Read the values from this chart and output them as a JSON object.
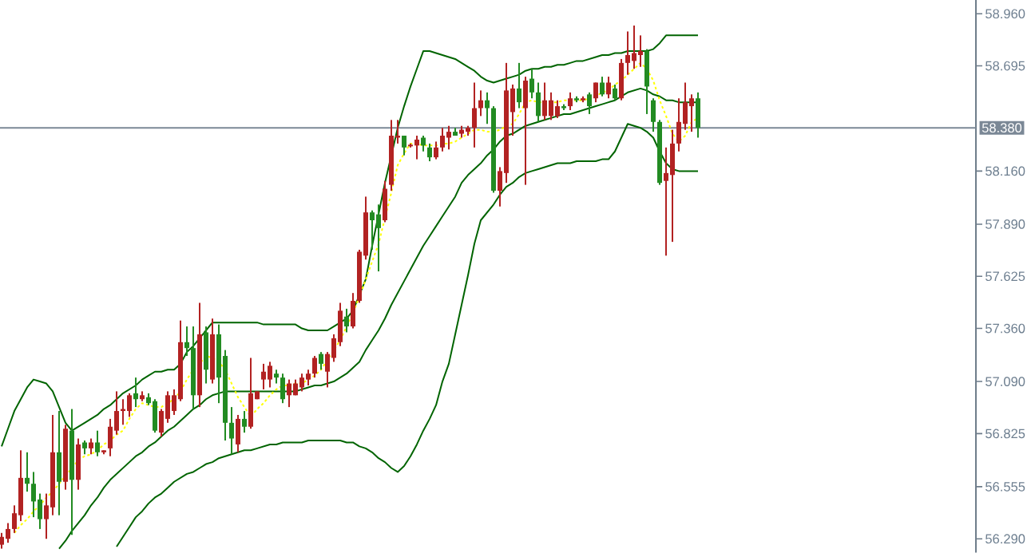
{
  "chart_data": {
    "type": "candlestick",
    "categories": [
      null,
      null,
      null,
      null,
      null,
      null,
      null,
      null,
      null,
      null,
      null,
      null,
      null,
      null,
      null,
      null,
      null,
      null,
      null,
      null,
      null,
      null,
      null,
      null,
      null,
      null,
      null,
      null,
      null,
      null,
      null,
      null,
      null,
      null,
      null,
      null,
      null,
      null,
      null,
      null,
      null,
      null,
      null,
      null,
      null,
      null,
      null,
      null,
      null,
      null,
      null,
      null,
      null,
      null,
      null,
      null,
      null,
      null,
      null,
      null,
      null,
      null,
      null,
      null,
      null,
      null,
      null,
      null,
      null,
      null,
      null,
      null,
      null,
      null,
      null,
      null,
      null,
      null,
      null,
      null,
      null,
      null,
      null,
      null,
      null,
      null,
      null,
      null,
      null,
      null,
      null,
      null,
      null,
      null,
      null,
      null,
      null,
      null,
      null,
      null,
      null,
      null,
      null,
      null,
      null,
      null,
      null,
      null,
      null,
      null
    ],
    "ohlc": [
      [
        56.26,
        56.32,
        56.24,
        56.3
      ],
      [
        56.29,
        56.37,
        56.27,
        56.34
      ],
      [
        56.34,
        56.46,
        56.32,
        56.42
      ],
      [
        56.41,
        56.74,
        56.38,
        56.6
      ],
      [
        56.6,
        56.73,
        56.53,
        56.57
      ],
      [
        56.57,
        56.63,
        56.4,
        56.48
      ],
      [
        56.49,
        56.52,
        56.34,
        56.39
      ],
      [
        56.39,
        56.52,
        56.29,
        56.46
      ],
      [
        56.45,
        56.92,
        56.41,
        56.73
      ],
      [
        56.73,
        56.94,
        56.41,
        56.58
      ],
      [
        56.58,
        56.87,
        56.54,
        56.85
      ],
      [
        56.84,
        56.95,
        56.31,
        56.59
      ],
      [
        56.59,
        56.8,
        56.54,
        56.77
      ],
      [
        56.78,
        56.79,
        56.72,
        56.75
      ],
      [
        56.75,
        56.8,
        56.72,
        56.78
      ],
      [
        56.78,
        56.84,
        56.71,
        56.73
      ],
      [
        56.73,
        56.74,
        56.72,
        56.74
      ],
      [
        56.75,
        56.9,
        56.71,
        56.86
      ],
      [
        56.84,
        57.04,
        56.82,
        56.94
      ],
      [
        56.94,
        57.0,
        56.87,
        56.95
      ],
      [
        56.94,
        57.03,
        56.91,
        57.02
      ],
      [
        57.03,
        57.11,
        56.96,
        57.0
      ],
      [
        57.0,
        57.04,
        56.99,
        57.02
      ],
      [
        57.01,
        57.03,
        56.97,
        56.98
      ],
      [
        56.99,
        57.0,
        56.83,
        56.84
      ],
      [
        56.83,
        56.95,
        56.81,
        56.94
      ],
      [
        56.9,
        57.04,
        56.88,
        57.02
      ],
      [
        56.94,
        57.05,
        56.92,
        57.02
      ],
      [
        57.0,
        57.4,
        56.99,
        57.29
      ],
      [
        57.29,
        57.37,
        57.22,
        57.26
      ],
      [
        57.26,
        57.37,
        56.95,
        57.02
      ],
      [
        57.02,
        57.49,
        56.96,
        57.33
      ],
      [
        57.34,
        57.37,
        57.08,
        57.15
      ],
      [
        57.1,
        57.41,
        57.08,
        57.33
      ],
      [
        57.33,
        57.38,
        56.98,
        57.11
      ],
      [
        57.22,
        57.25,
        56.79,
        56.88
      ],
      [
        56.88,
        56.96,
        56.72,
        56.8
      ],
      [
        56.77,
        56.92,
        56.73,
        56.9
      ],
      [
        56.9,
        56.94,
        56.83,
        56.86
      ],
      [
        56.86,
        57.21,
        56.85,
        57.03
      ],
      [
        57.0,
        57.04,
        57.0,
        57.04
      ],
      [
        57.1,
        57.18,
        57.05,
        57.14
      ],
      [
        57.1,
        57.19,
        57.06,
        57.17
      ],
      [
        57.13,
        57.15,
        57.08,
        57.11
      ],
      [
        57.11,
        57.13,
        56.98,
        57.0
      ],
      [
        57.02,
        57.1,
        56.96,
        57.08
      ],
      [
        57.02,
        57.1,
        57.02,
        57.08
      ],
      [
        57.06,
        57.13,
        57.04,
        57.11
      ],
      [
        57.1,
        57.15,
        57.07,
        57.13
      ],
      [
        57.13,
        57.22,
        57.11,
        57.21
      ],
      [
        57.23,
        57.24,
        57.15,
        57.18
      ],
      [
        57.14,
        57.24,
        57.06,
        57.23
      ],
      [
        57.21,
        57.33,
        57.19,
        57.31
      ],
      [
        57.29,
        57.49,
        57.27,
        57.45
      ],
      [
        57.42,
        57.46,
        57.34,
        57.37
      ],
      [
        57.37,
        57.54,
        57.36,
        57.5
      ],
      [
        57.5,
        57.76,
        57.49,
        57.75
      ],
      [
        57.73,
        58.03,
        57.71,
        57.95
      ],
      [
        57.95,
        57.96,
        57.76,
        57.91
      ],
      [
        57.94,
        57.99,
        57.65,
        57.87
      ],
      [
        57.91,
        58.11,
        57.9,
        58.07
      ],
      [
        58.09,
        58.42,
        58.06,
        58.34
      ],
      [
        58.33,
        58.42,
        58.3,
        58.34
      ],
      [
        58.34,
        58.34,
        58.24,
        58.28
      ],
      [
        58.29,
        58.3,
        58.28,
        58.29
      ],
      [
        58.29,
        58.34,
        58.22,
        58.32
      ],
      [
        58.33,
        58.34,
        58.26,
        58.29
      ],
      [
        58.28,
        58.3,
        58.21,
        58.23
      ],
      [
        58.23,
        58.31,
        58.22,
        58.28
      ],
      [
        58.28,
        58.38,
        58.26,
        58.34
      ],
      [
        58.33,
        58.39,
        58.27,
        58.36
      ],
      [
        58.36,
        58.38,
        58.34,
        58.34
      ],
      [
        58.35,
        58.39,
        58.33,
        58.37
      ],
      [
        58.36,
        58.39,
        58.34,
        58.38
      ],
      [
        58.38,
        58.61,
        58.28,
        58.48
      ],
      [
        58.48,
        58.57,
        58.44,
        58.52
      ],
      [
        58.52,
        58.56,
        58.4,
        58.48
      ],
      [
        58.48,
        58.49,
        58.05,
        58.06
      ],
      [
        58.06,
        58.18,
        57.98,
        58.16
      ],
      [
        58.15,
        58.71,
        58.1,
        58.57
      ],
      [
        58.46,
        58.6,
        58.34,
        58.58
      ],
      [
        58.58,
        58.71,
        58.48,
        58.51
      ],
      [
        58.48,
        58.64,
        58.09,
        58.62
      ],
      [
        58.63,
        58.68,
        58.53,
        58.56
      ],
      [
        58.56,
        58.61,
        58.41,
        58.44
      ],
      [
        58.44,
        58.61,
        58.42,
        58.52
      ],
      [
        58.44,
        58.56,
        58.42,
        58.52
      ],
      [
        58.44,
        58.52,
        58.43,
        58.49
      ],
      [
        58.49,
        58.5,
        58.47,
        58.48
      ],
      [
        58.49,
        58.56,
        58.47,
        58.53
      ],
      [
        58.53,
        58.54,
        58.51,
        58.52
      ],
      [
        58.52,
        58.54,
        58.51,
        58.53
      ],
      [
        58.55,
        58.56,
        58.45,
        58.49
      ],
      [
        58.53,
        58.61,
        58.51,
        58.61
      ],
      [
        58.61,
        58.64,
        58.54,
        58.55
      ],
      [
        58.55,
        58.64,
        58.53,
        58.61
      ],
      [
        58.58,
        58.6,
        58.52,
        58.53
      ],
      [
        58.53,
        58.73,
        58.52,
        58.71
      ],
      [
        58.71,
        58.87,
        58.65,
        58.75
      ],
      [
        58.72,
        58.9,
        58.68,
        58.76
      ],
      [
        58.75,
        58.85,
        58.69,
        58.77
      ],
      [
        58.77,
        58.78,
        58.45,
        58.59
      ],
      [
        58.52,
        58.53,
        58.36,
        58.41
      ],
      [
        58.41,
        58.42,
        58.09,
        58.1
      ],
      [
        58.11,
        58.28,
        57.73,
        58.15
      ],
      [
        58.14,
        58.37,
        57.8,
        58.3
      ],
      [
        58.3,
        58.53,
        58.26,
        58.41
      ],
      [
        58.4,
        58.61,
        58.37,
        58.51
      ],
      [
        58.49,
        58.55,
        58.36,
        58.53
      ],
      [
        58.53,
        58.56,
        58.33,
        58.38
      ]
    ],
    "colors": [
      "#b22222",
      "#b22222",
      "#b22222",
      "#b22222",
      "#228b22",
      "#228b22",
      "#228b22",
      "#b22222",
      "#b22222",
      "#228b22",
      "#b22222",
      "#228b22",
      "#b22222",
      "#228b22",
      "#b22222",
      "#228b22",
      "#b22222",
      "#b22222",
      "#b22222",
      "#b22222",
      "#b22222",
      "#228b22",
      "#b22222",
      "#228b22",
      "#228b22",
      "#b22222",
      "#b22222",
      "#b22222",
      "#b22222",
      "#228b22",
      "#228b22",
      "#b22222",
      "#228b22",
      "#b22222",
      "#228b22",
      "#228b22",
      "#228b22",
      "#b22222",
      "#228b22",
      "#b22222",
      "#b22222",
      "#b22222",
      "#b22222",
      "#228b22",
      "#228b22",
      "#b22222",
      "#b22222",
      "#b22222",
      "#b22222",
      "#b22222",
      "#228b22",
      "#b22222",
      "#b22222",
      "#b22222",
      "#228b22",
      "#b22222",
      "#b22222",
      "#b22222",
      "#228b22",
      "#228b22",
      "#b22222",
      "#b22222",
      "#b22222",
      "#228b22",
      "#b22222",
      "#b22222",
      "#228b22",
      "#228b22",
      "#b22222",
      "#b22222",
      "#b22222",
      "#228b22",
      "#b22222",
      "#b22222",
      "#b22222",
      "#b22222",
      "#228b22",
      "#228b22",
      "#b22222",
      "#b22222",
      "#b22222",
      "#228b22",
      "#b22222",
      "#228b22",
      "#228b22",
      "#b22222",
      "#b22222",
      "#b22222",
      "#228b22",
      "#b22222",
      "#228b22",
      "#b22222",
      "#228b22",
      "#b22222",
      "#228b22",
      "#b22222",
      "#228b22",
      "#b22222",
      "#b22222",
      "#b22222",
      "#b22222",
      "#228b22",
      "#228b22",
      "#228b22",
      "#b22222",
      "#b22222",
      "#b22222",
      "#b22222",
      "#b22222",
      "#228b22"
    ],
    "series": [
      {
        "type": "line",
        "color": "#006400",
        "values": [
          56.76,
          56.85,
          56.94,
          57.0,
          57.06,
          57.1,
          57.09,
          57.08,
          57.04,
          56.96,
          56.88,
          56.84,
          56.86,
          56.88,
          56.9,
          56.92,
          56.95,
          56.97,
          57.0,
          57.03,
          57.05,
          57.07,
          57.1,
          57.12,
          57.14,
          57.14,
          57.15,
          57.15,
          57.18,
          57.24,
          57.27,
          57.31,
          57.35,
          57.39,
          57.39,
          57.39,
          57.39,
          57.39,
          57.39,
          57.39,
          57.39,
          57.38,
          57.38,
          57.38,
          57.38,
          57.38,
          57.38,
          57.36,
          57.35,
          57.35,
          57.35,
          57.35,
          57.37,
          57.39,
          57.41,
          57.45,
          null,
          57.61,
          57.78,
          57.94,
          58.1,
          null,
          58.38,
          58.49,
          58.59,
          58.68,
          58.77,
          58.77,
          58.76,
          58.75,
          58.74,
          58.73,
          58.71,
          58.69,
          58.67,
          58.64,
          58.62,
          58.61,
          58.62,
          58.63,
          58.64,
          58.65,
          58.67,
          58.68,
          58.68,
          58.69,
          58.69,
          58.7,
          58.7,
          58.71,
          58.72,
          58.72,
          58.73,
          58.74,
          58.75,
          58.75,
          58.76,
          58.76,
          58.77,
          58.77,
          58.77,
          58.77,
          58.78,
          58.81,
          58.85,
          58.85,
          58.85,
          58.85,
          58.85,
          58.85
        ]
      },
      {
        "type": "line",
        "color": "#006400",
        "values": [
          null,
          null,
          null,
          null,
          null,
          null,
          null,
          null,
          null,
          56.24,
          56.28,
          56.33,
          56.37,
          56.41,
          56.46,
          56.5,
          56.55,
          56.59,
          56.62,
          56.65,
          56.68,
          56.71,
          56.73,
          56.76,
          56.78,
          56.81,
          56.84,
          56.86,
          56.89,
          56.92,
          56.95,
          56.97,
          57.0,
          57.02,
          57.03,
          57.04,
          57.04,
          57.04,
          57.04,
          57.04,
          57.04,
          57.04,
          57.04,
          57.04,
          57.04,
          57.04,
          57.04,
          57.05,
          57.06,
          57.07,
          57.07,
          57.08,
          57.09,
          57.11,
          57.13,
          57.16,
          57.19,
          57.25,
          57.3,
          57.35,
          57.41,
          57.48,
          57.54,
          57.6,
          57.66,
          57.72,
          57.78,
          57.83,
          57.88,
          57.93,
          57.98,
          58.03,
          58.1,
          58.14,
          58.17,
          58.2,
          58.24,
          58.27,
          58.31,
          58.34,
          58.35,
          58.37,
          58.39,
          58.4,
          58.41,
          58.42,
          58.43,
          58.44,
          58.45,
          58.45,
          58.46,
          58.47,
          58.48,
          58.49,
          58.5,
          58.51,
          58.52,
          58.54,
          58.56,
          58.57,
          58.58,
          58.57,
          58.55,
          58.54,
          58.52,
          58.52,
          58.51,
          58.51,
          58.51,
          58.51
        ]
      },
      {
        "type": "line",
        "color": "#006400",
        "values": [
          null,
          null,
          null,
          null,
          null,
          null,
          null,
          null,
          null,
          null,
          null,
          null,
          null,
          null,
          null,
          null,
          null,
          null,
          56.25,
          56.3,
          56.35,
          56.4,
          56.43,
          56.47,
          56.5,
          56.52,
          56.55,
          56.58,
          56.6,
          56.62,
          56.63,
          56.65,
          56.67,
          56.68,
          56.7,
          56.71,
          56.72,
          56.73,
          56.74,
          56.74,
          56.75,
          56.76,
          56.77,
          56.77,
          56.78,
          56.78,
          56.78,
          56.78,
          56.79,
          56.79,
          56.79,
          56.79,
          56.79,
          56.79,
          56.78,
          56.78,
          56.76,
          56.75,
          56.73,
          56.7,
          56.68,
          56.65,
          56.63,
          56.66,
          56.71,
          56.77,
          56.84,
          56.9,
          56.97,
          57.09,
          57.18,
          57.33,
          57.48,
          57.63,
          57.79,
          57.91,
          57.95,
          57.99,
          58.04,
          58.08,
          58.1,
          58.13,
          58.15,
          58.16,
          58.17,
          58.18,
          58.19,
          58.2,
          58.2,
          58.2,
          58.21,
          58.21,
          58.21,
          58.21,
          58.22,
          58.22,
          58.26,
          58.33,
          58.4,
          58.39,
          58.38,
          58.36,
          58.33,
          58.26,
          58.2,
          58.17,
          58.16,
          58.16,
          58.16,
          58.16
        ]
      },
      {
        "type": "line",
        "color": "#ffff00",
        "line_style": "dotted",
        "values": [
          null,
          null,
          56.32,
          56.36,
          56.39,
          56.43,
          56.46,
          56.5,
          56.53,
          56.57,
          56.61,
          56.65,
          56.69,
          56.71,
          56.72,
          56.74,
          56.77,
          56.79,
          56.82,
          56.84,
          56.9,
          56.95,
          56.98,
          56.97,
          56.96,
          56.96,
          56.98,
          57.0,
          57.04,
          57.1,
          57.15,
          57.18,
          57.22,
          57.21,
          57.19,
          57.15,
          57.08,
          57.01,
          56.96,
          56.91,
          56.95,
          56.98,
          57.02,
          57.05,
          57.07,
          57.07,
          57.08,
          57.08,
          57.1,
          57.12,
          57.15,
          57.2,
          57.25,
          57.3,
          57.37,
          57.44,
          57.52,
          57.61,
          57.7,
          57.79,
          57.92,
          58.05,
          58.19,
          58.25,
          58.3,
          58.3,
          58.29,
          58.29,
          58.29,
          58.3,
          58.3,
          58.31,
          58.33,
          58.35,
          58.37,
          58.37,
          58.36,
          58.36,
          58.37,
          58.39,
          58.4,
          58.45,
          58.51,
          58.52,
          58.51,
          58.51,
          58.51,
          58.51,
          58.52,
          58.52,
          58.52,
          58.52,
          58.53,
          58.54,
          58.56,
          58.57,
          58.6,
          58.62,
          58.65,
          58.68,
          58.71,
          58.68,
          58.62,
          58.52,
          58.44,
          58.35,
          58.31,
          58.34,
          58.41,
          58.43
        ]
      }
    ],
    "ylim": [
      56.22,
      59.03
    ],
    "yticks": [
      {
        "value": 56.29,
        "label": "56.290"
      },
      {
        "value": 56.555,
        "label": "56.555"
      },
      {
        "value": 56.825,
        "label": "56.825"
      },
      {
        "value": 57.09,
        "label": "57.090"
      },
      {
        "value": 57.36,
        "label": "57.360"
      },
      {
        "value": 57.625,
        "label": "57.625"
      },
      {
        "value": 57.89,
        "label": "57.890"
      },
      {
        "value": 58.16,
        "label": "58.160"
      },
      {
        "value": 58.695,
        "label": "58.695"
      },
      {
        "value": 58.96,
        "label": "58.960"
      }
    ],
    "tick_labels": "y",
    "ref_lines": [
      {
        "axis": "y",
        "value": 58.38,
        "label": "58.380",
        "color": "#7b8896"
      }
    ]
  }
}
